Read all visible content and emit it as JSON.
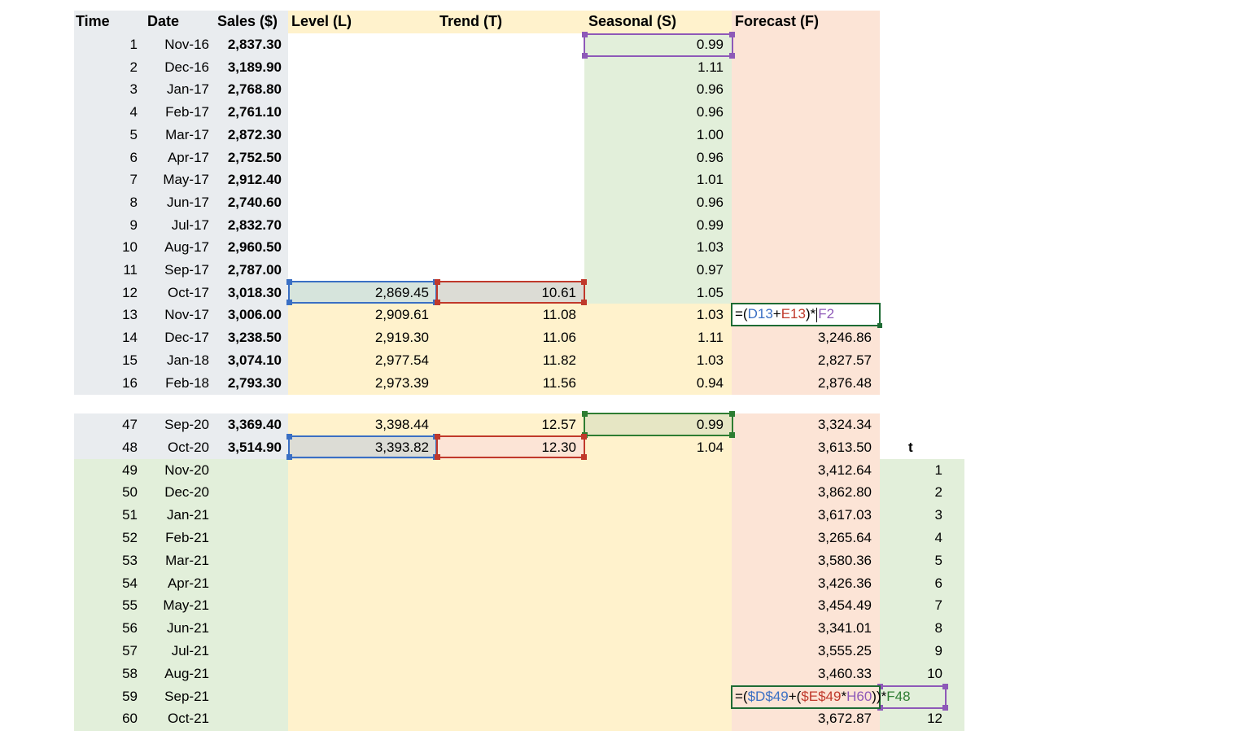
{
  "headers": {
    "time": "Time",
    "date": "Date",
    "sales": "Sales ($)",
    "level": "Level (L)",
    "trend": "Trend (T)",
    "seasonal": "Seasonal (S)",
    "forecast": "Forecast (F)",
    "t": "t"
  },
  "rows_top": [
    {
      "time": "1",
      "date": "Nov-16",
      "sales": "2,837.30",
      "level": "",
      "trend": "",
      "seasonal": "0.99",
      "forecast": ""
    },
    {
      "time": "2",
      "date": "Dec-16",
      "sales": "3,189.90",
      "level": "",
      "trend": "",
      "seasonal": "1.11",
      "forecast": ""
    },
    {
      "time": "3",
      "date": "Jan-17",
      "sales": "2,768.80",
      "level": "",
      "trend": "",
      "seasonal": "0.96",
      "forecast": ""
    },
    {
      "time": "4",
      "date": "Feb-17",
      "sales": "2,761.10",
      "level": "",
      "trend": "",
      "seasonal": "0.96",
      "forecast": ""
    },
    {
      "time": "5",
      "date": "Mar-17",
      "sales": "2,872.30",
      "level": "",
      "trend": "",
      "seasonal": "1.00",
      "forecast": ""
    },
    {
      "time": "6",
      "date": "Apr-17",
      "sales": "2,752.50",
      "level": "",
      "trend": "",
      "seasonal": "0.96",
      "forecast": ""
    },
    {
      "time": "7",
      "date": "May-17",
      "sales": "2,912.40",
      "level": "",
      "trend": "",
      "seasonal": "1.01",
      "forecast": ""
    },
    {
      "time": "8",
      "date": "Jun-17",
      "sales": "2,740.60",
      "level": "",
      "trend": "",
      "seasonal": "0.96",
      "forecast": ""
    },
    {
      "time": "9",
      "date": "Jul-17",
      "sales": "2,832.70",
      "level": "",
      "trend": "",
      "seasonal": "0.99",
      "forecast": ""
    },
    {
      "time": "10",
      "date": "Aug-17",
      "sales": "2,960.50",
      "level": "",
      "trend": "",
      "seasonal": "1.03",
      "forecast": ""
    },
    {
      "time": "11",
      "date": "Sep-17",
      "sales": "2,787.00",
      "level": "",
      "trend": "",
      "seasonal": "0.97",
      "forecast": ""
    },
    {
      "time": "12",
      "date": "Oct-17",
      "sales": "3,018.30",
      "level": "2,869.45",
      "trend": "10.61",
      "seasonal": "1.05",
      "forecast": ""
    },
    {
      "time": "13",
      "date": "Nov-17",
      "sales": "3,006.00",
      "level": "2,909.61",
      "trend": "11.08",
      "seasonal": "1.03",
      "forecast": ""
    },
    {
      "time": "14",
      "date": "Dec-17",
      "sales": "3,238.50",
      "level": "2,919.30",
      "trend": "11.06",
      "seasonal": "1.11",
      "forecast": "3,246.86"
    },
    {
      "time": "15",
      "date": "Jan-18",
      "sales": "3,074.10",
      "level": "2,977.54",
      "trend": "11.82",
      "seasonal": "1.03",
      "forecast": "2,827.57"
    },
    {
      "time": "16",
      "date": "Feb-18",
      "sales": "2,793.30",
      "level": "2,973.39",
      "trend": "11.56",
      "seasonal": "0.94",
      "forecast": "2,876.48"
    }
  ],
  "rows_bottom": [
    {
      "time": "47",
      "date": "Sep-20",
      "sales": "3,369.40",
      "level": "3,398.44",
      "trend": "12.57",
      "seasonal": "0.99",
      "forecast": "3,324.34",
      "t": ""
    },
    {
      "time": "48",
      "date": "Oct-20",
      "sales": "3,514.90",
      "level": "3,393.82",
      "trend": "12.30",
      "seasonal": "1.04",
      "forecast": "3,613.50",
      "t": ""
    },
    {
      "time": "49",
      "date": "Nov-20",
      "sales": "",
      "level": "",
      "trend": "",
      "seasonal": "",
      "forecast": "3,412.64",
      "t": "1"
    },
    {
      "time": "50",
      "date": "Dec-20",
      "sales": "",
      "level": "",
      "trend": "",
      "seasonal": "",
      "forecast": "3,862.80",
      "t": "2"
    },
    {
      "time": "51",
      "date": "Jan-21",
      "sales": "",
      "level": "",
      "trend": "",
      "seasonal": "",
      "forecast": "3,617.03",
      "t": "3"
    },
    {
      "time": "52",
      "date": "Feb-21",
      "sales": "",
      "level": "",
      "trend": "",
      "seasonal": "",
      "forecast": "3,265.64",
      "t": "4"
    },
    {
      "time": "53",
      "date": "Mar-21",
      "sales": "",
      "level": "",
      "trend": "",
      "seasonal": "",
      "forecast": "3,580.36",
      "t": "5"
    },
    {
      "time": "54",
      "date": "Apr-21",
      "sales": "",
      "level": "",
      "trend": "",
      "seasonal": "",
      "forecast": "3,426.36",
      "t": "6"
    },
    {
      "time": "55",
      "date": "May-21",
      "sales": "",
      "level": "",
      "trend": "",
      "seasonal": "",
      "forecast": "3,454.49",
      "t": "7"
    },
    {
      "time": "56",
      "date": "Jun-21",
      "sales": "",
      "level": "",
      "trend": "",
      "seasonal": "",
      "forecast": "3,341.01",
      "t": "8"
    },
    {
      "time": "57",
      "date": "Jul-21",
      "sales": "",
      "level": "",
      "trend": "",
      "seasonal": "",
      "forecast": "3,555.25",
      "t": "9"
    },
    {
      "time": "58",
      "date": "Aug-21",
      "sales": "",
      "level": "",
      "trend": "",
      "seasonal": "",
      "forecast": "3,460.33",
      "t": "10"
    },
    {
      "time": "59",
      "date": "Sep-21",
      "sales": "",
      "level": "",
      "trend": "",
      "seasonal": "",
      "forecast": "",
      "t": ""
    },
    {
      "time": "60",
      "date": "Oct-21",
      "sales": "",
      "level": "",
      "trend": "",
      "seasonal": "",
      "forecast": "3,672.87",
      "t": "12"
    }
  ],
  "formula_top": {
    "p1": "=(",
    "ref1": "D13",
    "p2": "+",
    "ref2": "E13",
    "p3": ")*",
    "ref3": "F2"
  },
  "formula_bottom": {
    "p1": "=(",
    "ref1": "$D$49",
    "p2": "+(",
    "ref2": "$E$49",
    "p3": "*",
    "ref3": "H60",
    "p4": "))*",
    "ref4": "F48"
  },
  "colors": {
    "header_grey": "#e9ecef",
    "fill_yellow": "#fff2cc",
    "fill_green": "#e2efda",
    "fill_pink": "#fce4d6",
    "ref_blue": "#3a6fc4",
    "ref_red": "#c0392b",
    "ref_purple": "#8e59b8",
    "ref_green": "#2e7d32"
  }
}
